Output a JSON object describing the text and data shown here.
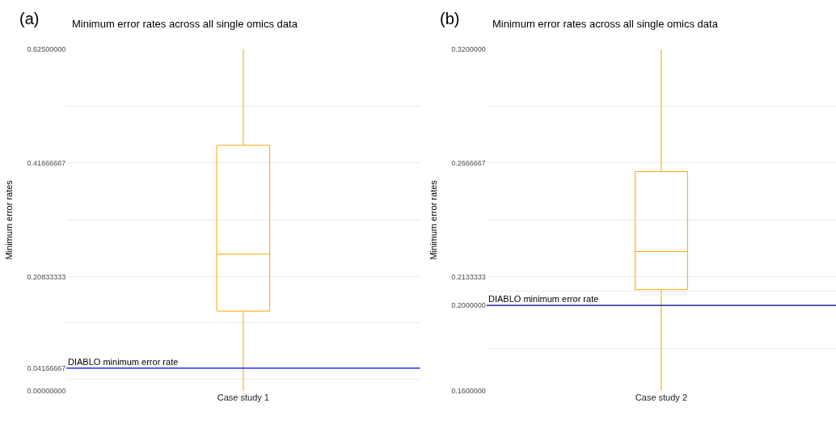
{
  "chart_data": [
    {
      "type": "box",
      "title": "Minimum error rates across all single omics data",
      "ylabel": "Minimum error rates",
      "categories": [
        "Case study 1"
      ],
      "annotations": [
        "(a)"
      ],
      "series": [
        {
          "color": "#ffa500",
          "boxes": [
            {
              "low": 0,
              "q1": 0.146,
              "median": 0.25,
              "q3": 0.449,
              "high": 0.625
            }
          ]
        }
      ],
      "ylim": [
        0,
        0.625
      ],
      "yticks": [
        {
          "value": 0,
          "label": "0.00000000"
        },
        {
          "value": 0.02083333,
          "label": null
        },
        {
          "value": 0.04166667,
          "label": "0.04166667"
        },
        {
          "value": 0.125,
          "label": null
        },
        {
          "value": 0.20833333,
          "label": "0.20833333"
        },
        {
          "value": 0.3125,
          "label": null
        },
        {
          "value": 0.41666667,
          "label": "0.41666667"
        },
        {
          "value": 0.52083333,
          "label": null
        },
        {
          "value": 0.625,
          "label": "0.62500000"
        }
      ],
      "ref_lines": [
        {
          "axis": "y",
          "value": 0.04166667,
          "label": "DIABLO minimum error rate",
          "color": "#0000ff"
        }
      ],
      "grid": "y"
    },
    {
      "type": "box",
      "title": "Minimum error rates across all single omics data",
      "ylabel": "Minimum error rates",
      "categories": [
        "Case study 2"
      ],
      "annotations": [
        "(b)"
      ],
      "series": [
        {
          "color": "#ffa500",
          "boxes": [
            {
              "low": 0.16,
              "q1": 0.2074,
              "median": 0.2252,
              "q3": 0.2626,
              "high": 0.32
            }
          ]
        }
      ],
      "ylim": [
        0.16,
        0.32
      ],
      "yticks": [
        {
          "value": 0.16,
          "label": "0.1600000"
        },
        {
          "value": 0.18,
          "label": null
        },
        {
          "value": 0.2,
          "label": "0.2000000"
        },
        {
          "value": 0.2066667,
          "label": null
        },
        {
          "value": 0.2133333,
          "label": "0.2133333"
        },
        {
          "value": 0.24,
          "label": null
        },
        {
          "value": 0.2666667,
          "label": "0.2666667"
        },
        {
          "value": 0.2933333,
          "label": null
        },
        {
          "value": 0.32,
          "label": "0.3200000"
        }
      ],
      "ref_lines": [
        {
          "axis": "y",
          "value": 0.2,
          "label": "DIABLO minimum error rate",
          "color": "#00008b"
        }
      ],
      "grid": "y"
    }
  ]
}
